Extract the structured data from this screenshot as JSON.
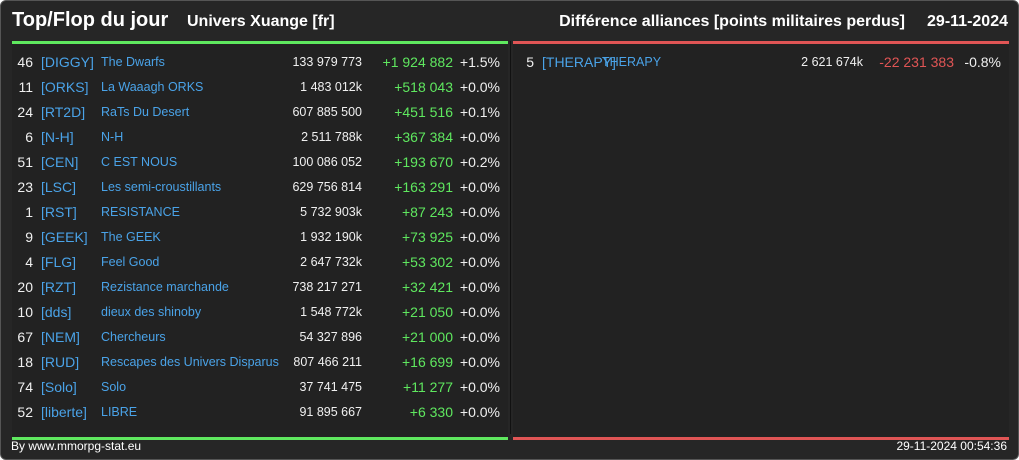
{
  "header": {
    "title": "Top/Flop du jour",
    "univers": "Univers Xuange [fr]",
    "subtitle": "Différence alliances [points militaires perdus]",
    "date": "29-11-2024"
  },
  "top": [
    {
      "rank": "46",
      "tag": "[DIGGY]",
      "name": "The Dwarfs",
      "points": "133 979 773",
      "diff": "+1 924 882",
      "pct": "+1.5%"
    },
    {
      "rank": "11",
      "tag": "[ORKS]",
      "name": "La Waaagh ORKS",
      "points": "1 483 012k",
      "diff": "+518 043",
      "pct": "+0.0%"
    },
    {
      "rank": "24",
      "tag": "[RT2D]",
      "name": "RaTs Du Desert",
      "points": "607 885 500",
      "diff": "+451 516",
      "pct": "+0.1%"
    },
    {
      "rank": "6",
      "tag": "[N-H]",
      "name": "N-H",
      "points": "2 511 788k",
      "diff": "+367 384",
      "pct": "+0.0%"
    },
    {
      "rank": "51",
      "tag": "[CEN]",
      "name": "C EST NOUS",
      "points": "100 086 052",
      "diff": "+193 670",
      "pct": "+0.2%"
    },
    {
      "rank": "23",
      "tag": "[LSC]",
      "name": "Les semi-croustillants",
      "points": "629 756 814",
      "diff": "+163 291",
      "pct": "+0.0%"
    },
    {
      "rank": "1",
      "tag": "[RST]",
      "name": "RESISTANCE",
      "points": "5 732 903k",
      "diff": "+87 243",
      "pct": "+0.0%"
    },
    {
      "rank": "9",
      "tag": "[GEEK]",
      "name": "The GEEK",
      "points": "1 932 190k",
      "diff": "+73 925",
      "pct": "+0.0%"
    },
    {
      "rank": "4",
      "tag": "[FLG]",
      "name": "Feel Good",
      "points": "2 647 732k",
      "diff": "+53 302",
      "pct": "+0.0%"
    },
    {
      "rank": "20",
      "tag": "[RZT]",
      "name": "Rezistance marchande",
      "points": "738 217 271",
      "diff": "+32 421",
      "pct": "+0.0%"
    },
    {
      "rank": "10",
      "tag": "[dds]",
      "name": "dieux des shinoby",
      "points": "1 548 772k",
      "diff": "+21 050",
      "pct": "+0.0%"
    },
    {
      "rank": "67",
      "tag": "[NEM]",
      "name": "Chercheurs",
      "points": "54 327 896",
      "diff": "+21 000",
      "pct": "+0.0%"
    },
    {
      "rank": "18",
      "tag": "[RUD]",
      "name": "Rescapes des Univers Disparus",
      "points": "807 466 211",
      "diff": "+16 699",
      "pct": "+0.0%"
    },
    {
      "rank": "74",
      "tag": "[Solo]",
      "name": "Solo",
      "points": "37 741 475",
      "diff": "+11 277",
      "pct": "+0.0%"
    },
    {
      "rank": "52",
      "tag": "[liberte]",
      "name": "LIBRE",
      "points": "91 895 667",
      "diff": "+6 330",
      "pct": "+0.0%"
    }
  ],
  "flop": [
    {
      "rank": "5",
      "tag": "[THERAPY]",
      "name": "THERAPY",
      "points": "2 621 674k",
      "diff": "-22 231 383",
      "pct": "-0.8%"
    }
  ],
  "footer": {
    "source": "By www.mmorpg-stat.eu",
    "timestamp": "29-11-2024 00:54:36"
  },
  "colors": {
    "background": "#262626",
    "positive": "#5fe85f",
    "negative": "#e05555",
    "link": "#4aa3e8"
  }
}
